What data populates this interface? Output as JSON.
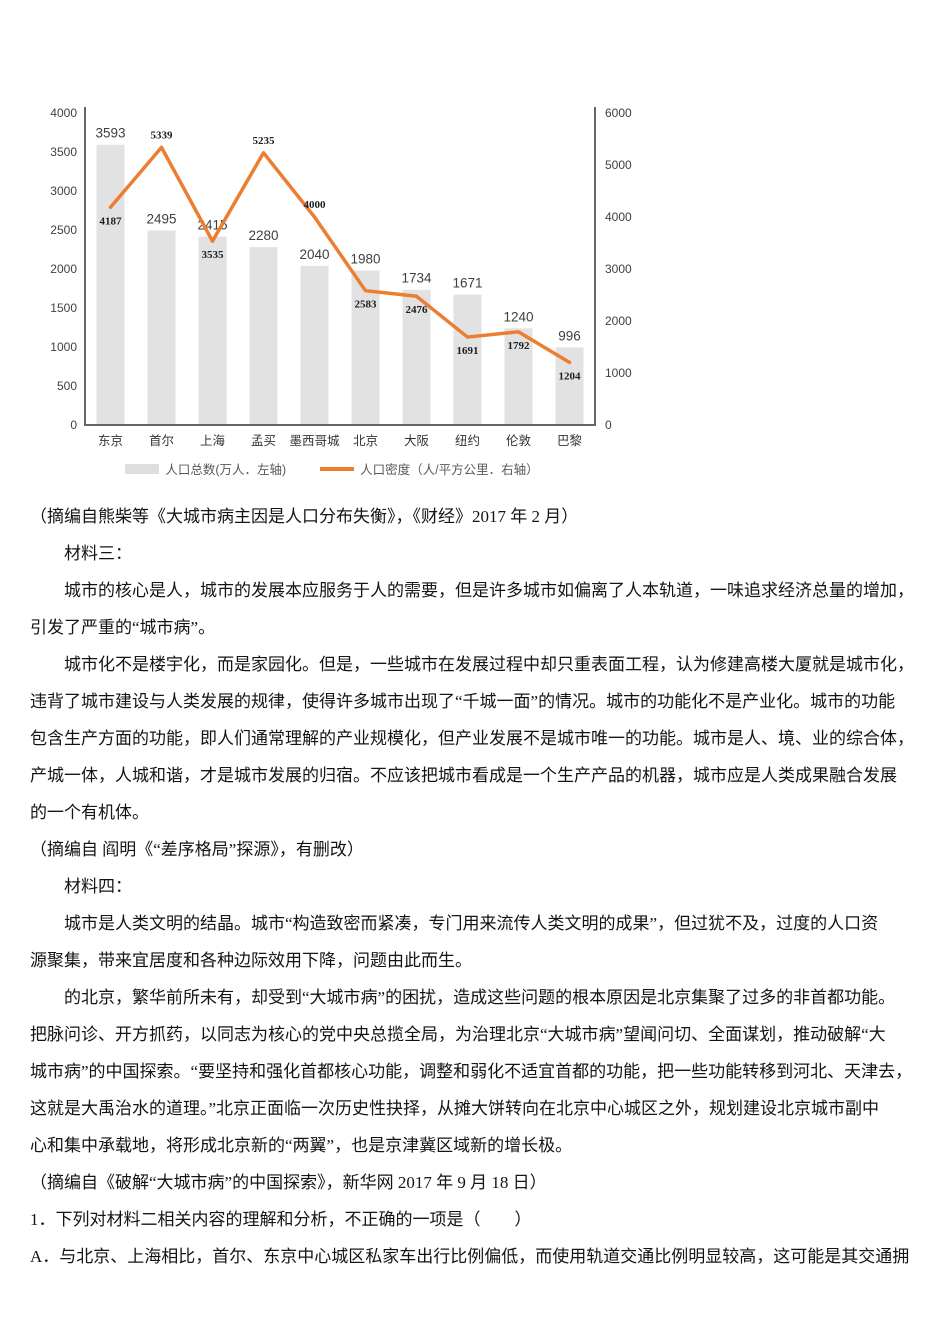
{
  "chart_data": {
    "type": "bar+line combo",
    "title": "",
    "categories": [
      "东京",
      "首尔",
      "上海",
      "孟买",
      "墨西哥城",
      "北京",
      "大阪",
      "纽约",
      "伦敦",
      "巴黎"
    ],
    "series": [
      {
        "name": "人口总数(万人．左轴)",
        "type": "bar",
        "axis": "left",
        "color": "#e2e2e2",
        "values": [
          3593,
          2495,
          2415,
          2280,
          2040,
          1980,
          1734,
          1671,
          1240,
          996
        ]
      },
      {
        "name": "人口密度（人/平方公里．右轴）",
        "type": "line",
        "axis": "right",
        "color": "#ed7d31",
        "values": [
          4187,
          5339,
          3535,
          5235,
          4000,
          2583,
          2476,
          1691,
          1792,
          1204
        ],
        "label_pos": [
          "below",
          "above",
          "below",
          "above",
          "above",
          "below",
          "below",
          "below",
          "below",
          "below"
        ]
      }
    ],
    "left_axis": {
      "min": 0,
      "max": 4000,
      "step": 500
    },
    "right_axis": {
      "min": 0,
      "max": 6000,
      "step": 1000
    },
    "grid": false,
    "legend_position": "bottom"
  },
  "document": {
    "lines": [
      {
        "text": "（摘编自熊柴等《大城市病主因是人口分布失衡》，《财经》2017 年 2 月）",
        "indent": false
      },
      {
        "text": "材料三：",
        "indent": true
      },
      {
        "text": "城市的核心是人，城市的发展本应服务于人的需要，但是许多城市如偏离了人本轨道，一味追求经济总量的增加，",
        "indent": true
      },
      {
        "text": "引发了严重的“城市病”。",
        "indent": false
      },
      {
        "text": "城市化不是楼宇化，而是家园化。但是，一些城市在发展过程中却只重表面工程，认为修建高楼大厦就是城市化，",
        "indent": true
      },
      {
        "text": "违背了城市建设与人类发展的规律，使得许多城市出现了“千城一面”的情况。城市的功能化不是产业化。城市的功能",
        "indent": false
      },
      {
        "text": "包含生产方面的功能，即人们通常理解的产业规模化，但产业发展不是城市唯一的功能。城市是人、境、业的综合体，",
        "indent": false
      },
      {
        "text": "产城一体，人城和谐，才是城市发展的归宿。不应该把城市看成是一个生产产品的机器，城市应是人类成果融合发展",
        "indent": false
      },
      {
        "text": "的一个有机体。",
        "indent": false
      },
      {
        "text": "（摘编自 阎明《“差序格局”探源》，有删改）",
        "indent": false
      },
      {
        "text": "材料四：",
        "indent": true
      },
      {
        "text": "城市是人类文明的结晶。城市“构造致密而紧凑，专门用来流传人类文明的成果”，但过犹不及，过度的人口资",
        "indent": true
      },
      {
        "text": "源聚集，带来宜居度和各种边际效用下降，问题由此而生。",
        "indent": false
      },
      {
        "text": "的北京，繁华前所未有，却受到“大城市病”的困扰，造成这些问题的根本原因是北京集聚了过多的非首都功能。",
        "indent": true
      },
      {
        "text": "把脉问诊、开方抓药，以同志为核心的党中央总揽全局，为治理北京“大城市病”望闻问切、全面谋划，推动破解“大",
        "indent": false
      },
      {
        "text": "城市病”的中国探索。“要坚持和强化首都核心功能，调整和弱化不适宜首都的功能，把一些功能转移到河北、天津去，",
        "indent": false
      },
      {
        "text": "这就是大禹治水的道理。”北京正面临一次历史性抉择，从摊大饼转向在北京中心城区之外，规划建设北京城市副中",
        "indent": false
      },
      {
        "text": "心和集中承载地，将形成北京新的“两翼”，也是京津冀区域新的增长极。",
        "indent": false
      },
      {
        "text": "（摘编自《破解“大城市病”的中国探索》，新华网 2017 年 9 月 18 日）",
        "indent": false
      },
      {
        "text": "1．下列对材料二相关内容的理解和分析，不正确的一项是（　　）",
        "indent": false
      },
      {
        "text": "A．与北京、上海相比，首尔、东京中心城区私家车出行比例偏低，而使用轨道交通比例明显较高，这可能是其交通拥",
        "indent": false
      }
    ]
  }
}
